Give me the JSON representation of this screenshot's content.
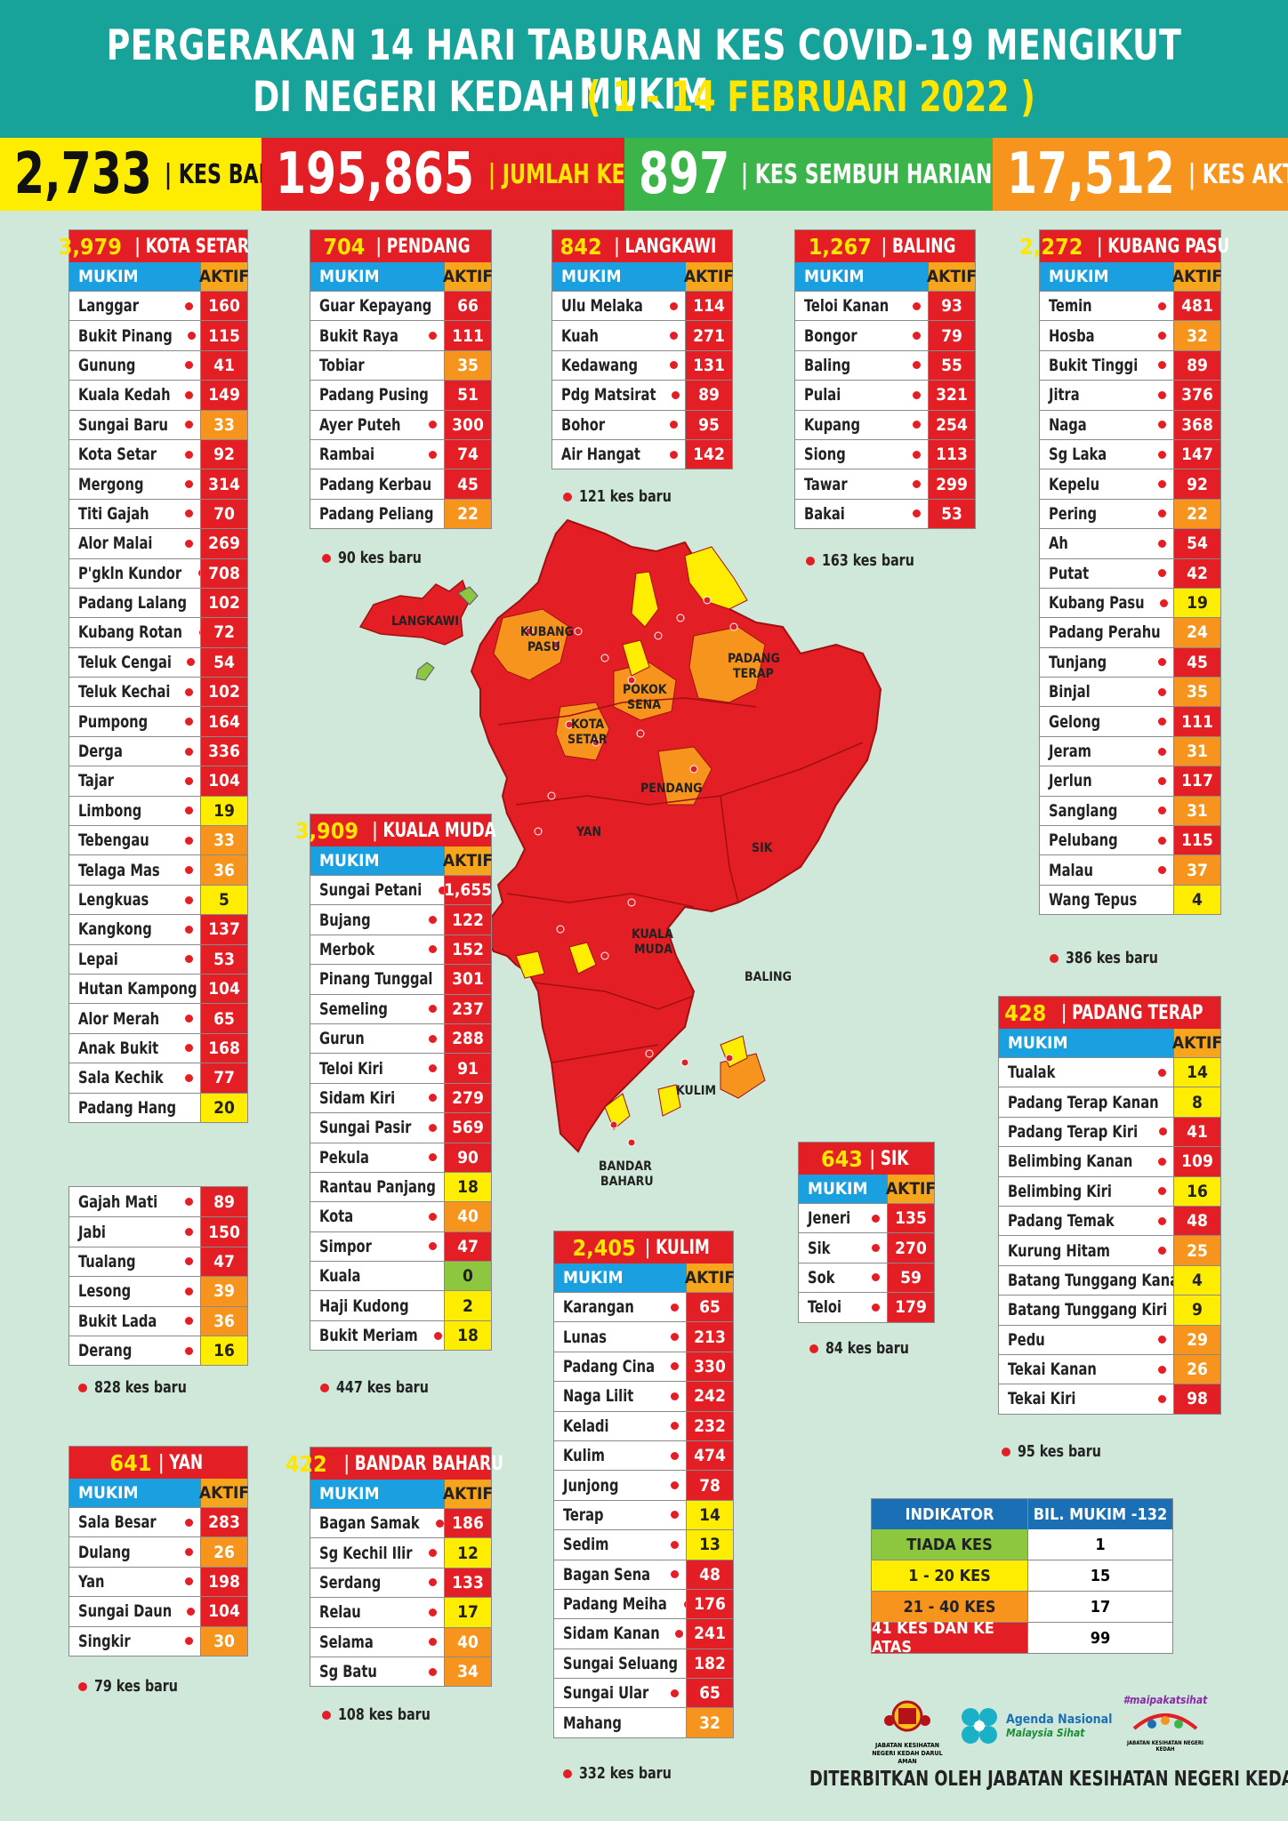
{
  "header": {
    "line1": "PERGERAKAN 14 HARI TABURAN KES COVID-19 MENGIKUT MUKIM",
    "line2_a": "DI NEGERI KEDAH ",
    "line2_b": "( 1 - 14 FEBRUARI 2022 )"
  },
  "stats": [
    {
      "value": "2,733",
      "label": "| KES BARU",
      "bg": "#ffed00",
      "num_color": "#111",
      "lbl_color": "#111"
    },
    {
      "value": "195,865",
      "label": "| JUMLAH KES",
      "bg": "#e31e24",
      "num_color": "#fff",
      "lbl_color": "#ffe600"
    },
    {
      "value": "897",
      "label": "| KES SEMBUH HARIAN",
      "bg": "#3bb54a",
      "num_color": "#fff",
      "lbl_color": "#fff"
    },
    {
      "value": "17,512",
      "label": "| KES AKTIF",
      "bg": "#f7941d",
      "num_color": "#fff",
      "lbl_color": "#fff"
    }
  ],
  "colors": {
    "red": "#e31e24",
    "orange": "#f7941d",
    "yellow": "#ffed00",
    "green": "#8dc63f"
  },
  "col_mukim": "MUKIM",
  "col_aktif": "AKTIF",
  "districts": [
    {
      "total": "3,979",
      "name": "| KOTA SETAR",
      "rows": [
        [
          "Langgar",
          "160",
          "r",
          1
        ],
        [
          "Bukit Pinang",
          "115",
          "r",
          1
        ],
        [
          "Gunung",
          "41",
          "r",
          1
        ],
        [
          "Kuala Kedah",
          "149",
          "r",
          1
        ],
        [
          "Sungai Baru",
          "33",
          "o",
          1
        ],
        [
          "Kota Setar",
          "92",
          "r",
          1
        ],
        [
          "Mergong",
          "314",
          "r",
          1
        ],
        [
          "Titi Gajah",
          "70",
          "r",
          1
        ],
        [
          "Alor Malai",
          "269",
          "r",
          1
        ],
        [
          "P'gkln Kundor",
          "708",
          "r",
          1
        ],
        [
          "Padang Lalang",
          "102",
          "r",
          1
        ],
        [
          "Kubang Rotan",
          "72",
          "r",
          1
        ],
        [
          "Teluk Cengai",
          "54",
          "r",
          1
        ],
        [
          "Teluk Kechai",
          "102",
          "r",
          1
        ],
        [
          "Pumpong",
          "164",
          "r",
          1
        ],
        [
          "Derga",
          "336",
          "r",
          1
        ],
        [
          "Tajar",
          "104",
          "r",
          1
        ],
        [
          "Limbong",
          "19",
          "y",
          1
        ],
        [
          "Tebengau",
          "33",
          "o",
          1
        ],
        [
          "Telaga Mas",
          "36",
          "o",
          1
        ],
        [
          "Lengkuas",
          "5",
          "y",
          1
        ],
        [
          "Kangkong",
          "137",
          "r",
          1
        ],
        [
          "Lepai",
          "53",
          "r",
          1
        ],
        [
          "Hutan Kampong",
          "104",
          "r",
          1
        ],
        [
          "Alor Merah",
          "65",
          "r",
          1
        ],
        [
          "Anak Bukit",
          "168",
          "r",
          1
        ],
        [
          "Sala Kechik",
          "77",
          "r",
          1
        ],
        [
          "Padang Hang",
          "20",
          "y",
          0
        ]
      ]
    },
    {
      "total": "",
      "name": "",
      "rows": [
        [
          "Gajah Mati",
          "89",
          "r",
          1
        ],
        [
          "Jabi",
          "150",
          "r",
          1
        ],
        [
          "Tualang",
          "47",
          "r",
          1
        ],
        [
          "Lesong",
          "39",
          "o",
          1
        ],
        [
          "Bukit Lada",
          "36",
          "o",
          1
        ],
        [
          "Derang",
          "16",
          "y",
          1
        ]
      ],
      "note": "828 kes baru"
    },
    {
      "total": "704",
      "name": "| PENDANG",
      "rows": [
        [
          "Guar Kepayang",
          "66",
          "r",
          1
        ],
        [
          "Bukit Raya",
          "111",
          "r",
          1
        ],
        [
          "Tobiar",
          "35",
          "o",
          0
        ],
        [
          "Padang Pusing",
          "51",
          "r",
          1
        ],
        [
          "Ayer Puteh",
          "300",
          "r",
          1
        ],
        [
          "Rambai",
          "74",
          "r",
          1
        ],
        [
          "Padang Kerbau",
          "45",
          "r",
          1
        ],
        [
          "Padang Peliang",
          "22",
          "o",
          0
        ]
      ],
      "note": "90 kes baru"
    },
    {
      "total": "842",
      "name": "| LANGKAWI",
      "rows": [
        [
          "Ulu Melaka",
          "114",
          "r",
          1
        ],
        [
          "Kuah",
          "271",
          "r",
          1
        ],
        [
          "Kedawang",
          "131",
          "r",
          1
        ],
        [
          "Pdg Matsirat",
          "89",
          "r",
          1
        ],
        [
          "Bohor",
          "95",
          "r",
          1
        ],
        [
          "Air Hangat",
          "142",
          "r",
          1
        ]
      ],
      "note": "121 kes baru"
    },
    {
      "total": "1,267",
      "name": "| BALING",
      "rows": [
        [
          "Teloi Kanan",
          "93",
          "r",
          1
        ],
        [
          "Bongor",
          "79",
          "r",
          1
        ],
        [
          "Baling",
          "55",
          "r",
          1
        ],
        [
          "Pulai",
          "321",
          "r",
          1
        ],
        [
          "Kupang",
          "254",
          "r",
          1
        ],
        [
          "Siong",
          "113",
          "r",
          1
        ],
        [
          "Tawar",
          "299",
          "r",
          1
        ],
        [
          "Bakai",
          "53",
          "r",
          1
        ]
      ],
      "note": "163 kes baru"
    },
    {
      "total": "2,272",
      "name": "| KUBANG PASU",
      "rows": [
        [
          "Temin",
          "481",
          "r",
          1
        ],
        [
          "Hosba",
          "32",
          "o",
          1
        ],
        [
          "Bukit Tinggi",
          "89",
          "r",
          1
        ],
        [
          "Jitra",
          "376",
          "r",
          1
        ],
        [
          "Naga",
          "368",
          "r",
          1
        ],
        [
          "Sg Laka",
          "147",
          "r",
          1
        ],
        [
          "Kepelu",
          "92",
          "r",
          1
        ],
        [
          "Pering",
          "22",
          "o",
          1
        ],
        [
          "Ah",
          "54",
          "r",
          1
        ],
        [
          "Putat",
          "42",
          "r",
          1
        ],
        [
          "Kubang Pasu",
          "19",
          "y",
          1
        ],
        [
          "Padang Perahu",
          "24",
          "o",
          1
        ],
        [
          "Tunjang",
          "45",
          "r",
          1
        ],
        [
          "Binjal",
          "35",
          "o",
          1
        ],
        [
          "Gelong",
          "111",
          "r",
          1
        ],
        [
          "Jeram",
          "31",
          "o",
          1
        ],
        [
          "Jerlun",
          "117",
          "r",
          1
        ],
        [
          "Sanglang",
          "31",
          "o",
          1
        ],
        [
          "Pelubang",
          "115",
          "r",
          1
        ],
        [
          "Malau",
          "37",
          "o",
          1
        ],
        [
          "Wang Tepus",
          "4",
          "y",
          0
        ]
      ],
      "note": "386 kes baru"
    },
    {
      "total": "3,909",
      "name": "| KUALA MUDA",
      "rows": [
        [
          "Sungai Petani",
          "1,655",
          "r",
          1
        ],
        [
          "Bujang",
          "122",
          "r",
          1
        ],
        [
          "Merbok",
          "152",
          "r",
          1
        ],
        [
          "Pinang Tunggal",
          "301",
          "r",
          1
        ],
        [
          "Semeling",
          "237",
          "r",
          1
        ],
        [
          "Gurun",
          "288",
          "r",
          1
        ],
        [
          "Teloi Kiri",
          "91",
          "r",
          1
        ],
        [
          "Sidam Kiri",
          "279",
          "r",
          1
        ],
        [
          "Sungai Pasir",
          "569",
          "r",
          1
        ],
        [
          "Pekula",
          "90",
          "r",
          1
        ],
        [
          "Rantau Panjang",
          "18",
          "y",
          1
        ],
        [
          "Kota",
          "40",
          "o",
          1
        ],
        [
          "Simpor",
          "47",
          "r",
          1
        ],
        [
          "Kuala",
          "0",
          "g",
          0
        ],
        [
          "Haji Kudong",
          "2",
          "y",
          0
        ],
        [
          "Bukit Meriam",
          "18",
          "y",
          1
        ]
      ],
      "note": "447 kes baru"
    },
    {
      "total": "428",
      "name": "| PADANG TERAP",
      "rows": [
        [
          "Tualak",
          "14",
          "y",
          1
        ],
        [
          "Padang Terap Kanan",
          "8",
          "y",
          1
        ],
        [
          "Padang Terap Kiri",
          "41",
          "r",
          1
        ],
        [
          "Belimbing Kanan",
          "109",
          "r",
          1
        ],
        [
          "Belimbing Kiri",
          "16",
          "y",
          1
        ],
        [
          "Padang Temak",
          "48",
          "r",
          1
        ],
        [
          "Kurung Hitam",
          "25",
          "o",
          1
        ],
        [
          "Batang Tunggang Kanan",
          "4",
          "y",
          1
        ],
        [
          "Batang Tunggang Kiri",
          "9",
          "y",
          1
        ],
        [
          "Pedu",
          "29",
          "o",
          1
        ],
        [
          "Tekai Kanan",
          "26",
          "o",
          1
        ],
        [
          "Tekai Kiri",
          "98",
          "r",
          1
        ]
      ],
      "note": "95 kes baru"
    },
    {
      "total": "643",
      "name": "| SIK",
      "rows": [
        [
          "Jeneri",
          "135",
          "r",
          1
        ],
        [
          "Sik",
          "270",
          "r",
          1
        ],
        [
          "Sok",
          "59",
          "r",
          1
        ],
        [
          "Teloi",
          "179",
          "r",
          1
        ]
      ],
      "note": "84 kes baru"
    },
    {
      "total": "2,405",
      "name": "| KULIM",
      "rows": [
        [
          "Karangan",
          "65",
          "r",
          1
        ],
        [
          "Lunas",
          "213",
          "r",
          1
        ],
        [
          "Padang Cina",
          "330",
          "r",
          1
        ],
        [
          "Naga Lilit",
          "242",
          "r",
          1
        ],
        [
          "Keladi",
          "232",
          "r",
          1
        ],
        [
          "Kulim",
          "474",
          "r",
          1
        ],
        [
          "Junjong",
          "78",
          "r",
          1
        ],
        [
          "Terap",
          "14",
          "y",
          1
        ],
        [
          "Sedim",
          "13",
          "y",
          1
        ],
        [
          "Bagan Sena",
          "48",
          "r",
          1
        ],
        [
          "Padang Meiha",
          "176",
          "r",
          1
        ],
        [
          "Sidam Kanan",
          "241",
          "r",
          1
        ],
        [
          "Sungai Seluang",
          "182",
          "r",
          1
        ],
        [
          "Sungai Ular",
          "65",
          "r",
          1
        ],
        [
          "Mahang",
          "32",
          "o",
          0
        ]
      ],
      "note": "332 kes baru"
    },
    {
      "total": "641",
      "name": "| YAN",
      "rows": [
        [
          "Sala Besar",
          "283",
          "r",
          1
        ],
        [
          "Dulang",
          "26",
          "o",
          1
        ],
        [
          "Yan",
          "198",
          "r",
          1
        ],
        [
          "Sungai Daun",
          "104",
          "r",
          1
        ],
        [
          "Singkir",
          "30",
          "o",
          1
        ]
      ],
      "note": "79 kes baru"
    },
    {
      "total": "422",
      "name": "| BANDAR BAHARU",
      "rows": [
        [
          "Bagan Samak",
          "186",
          "r",
          1
        ],
        [
          "Sg Kechil Ilir",
          "12",
          "y",
          1
        ],
        [
          "Serdang",
          "133",
          "r",
          1
        ],
        [
          "Relau",
          "17",
          "y",
          1
        ],
        [
          "Selama",
          "40",
          "o",
          1
        ],
        [
          "Sg Batu",
          "34",
          "o",
          1
        ]
      ],
      "note": "108 kes baru"
    }
  ],
  "legend": {
    "head_a": "INDIKATOR",
    "head_b": "BIL. MUKIM -132",
    "rows": [
      {
        "label": "TIADA KES",
        "count": "1",
        "color": "#8dc63f"
      },
      {
        "label": "1 - 20 KES",
        "count": "15",
        "color": "#ffed00"
      },
      {
        "label": "21 - 40 KES",
        "count": "17",
        "color": "#f7941d"
      },
      {
        "label": "41 KES DAN KE ATAS",
        "count": "99",
        "color": "#e31e24"
      }
    ]
  },
  "map_labels": {
    "langkawi": "LANGKAWI",
    "kubang_pasu_1": "KUBANG",
    "kubang_pasu_2": "PASU",
    "padang_terap_1": "PADANG",
    "padang_terap_2": "TERAP",
    "pokok_sena_1": "POKOK",
    "pokok_sena_2": "SENA",
    "kota_setar_1": "KOTA",
    "kota_setar_2": "SETAR",
    "pendang": "PENDANG",
    "yan": "YAN",
    "sik": "SIK",
    "kuala_muda_1": "KUALA",
    "kuala_muda_2": "MUDA",
    "baling": "BALING",
    "kulim": "KULIM",
    "bandar_baharu_1": "BANDAR",
    "bandar_baharu_2": "BAHARU"
  },
  "logos": {
    "jkn": "JABATAN KESIHATAN NEGERI KEDAH DARUL AMAN",
    "agenda_1": "Agenda Nasional",
    "agenda_2": "Malaysia Sihat",
    "smpk": "#maipakatsihat",
    "smpk_sub": "JABATAN KESIHATAN NEGERI KEDAH"
  },
  "footer": "DITERBITKAN OLEH JABATAN KESIHATAN NEGERI KEDAH"
}
